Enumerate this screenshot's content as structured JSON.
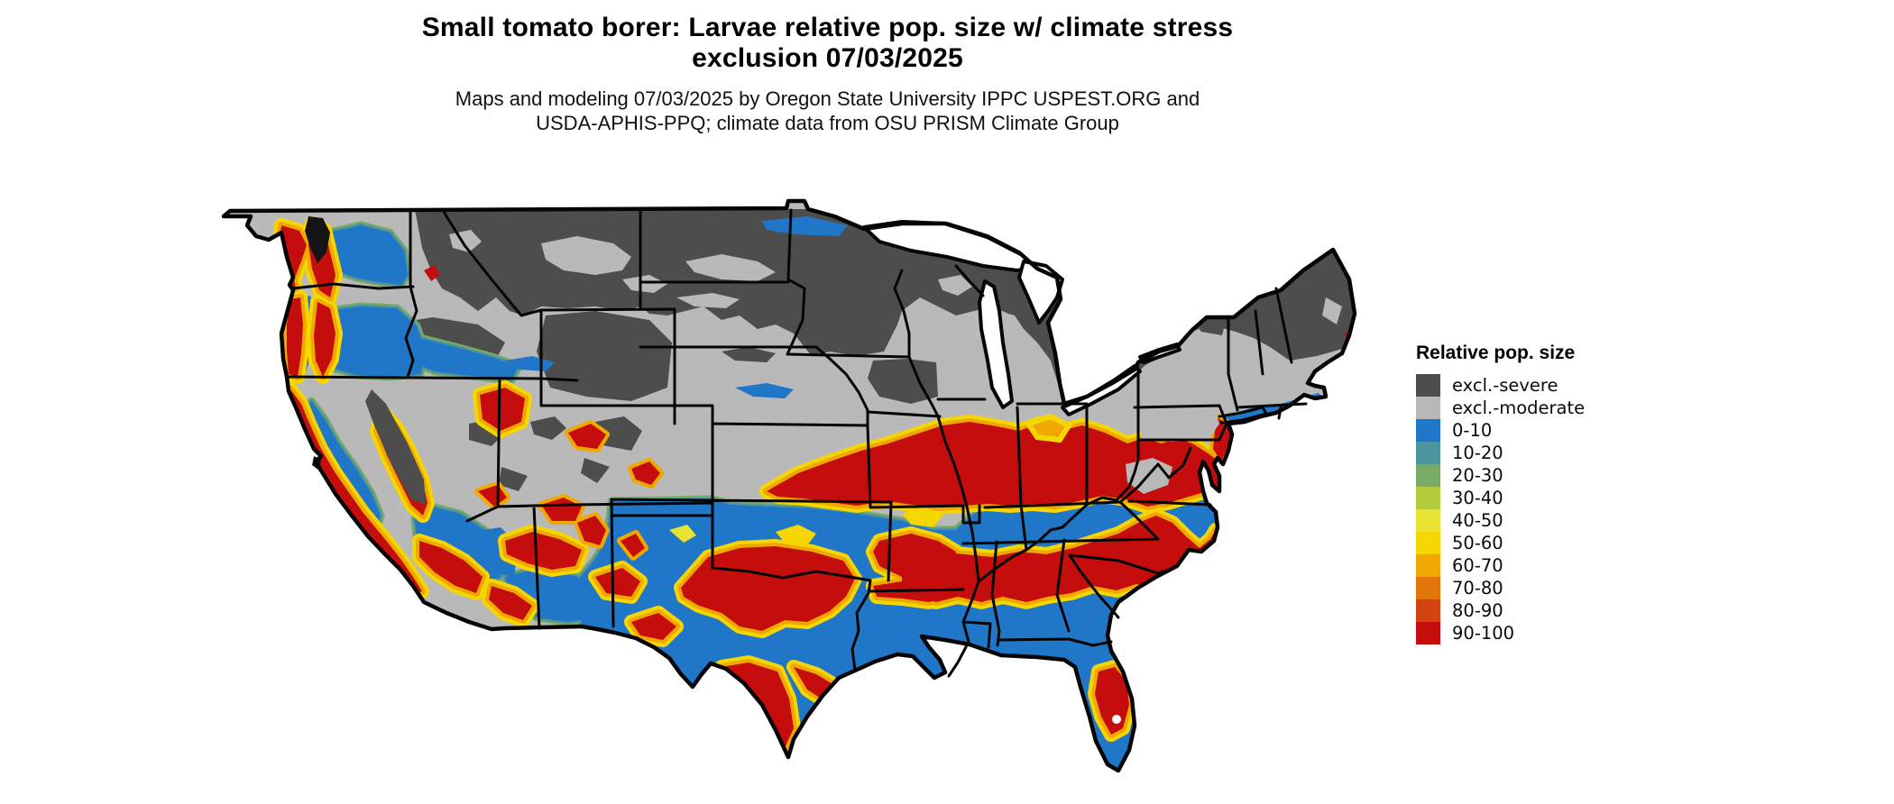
{
  "title": {
    "line1": "Small tomato borer: Larvae relative pop. size w/ climate stress",
    "line2": "exclusion 07/03/2025"
  },
  "subtitle": {
    "line1": "Maps and modeling 07/03/2025 by Oregon State University IPPC USPEST.ORG and",
    "line2": "USDA-APHIS-PPQ; climate data from OSU PRISM Climate Group"
  },
  "legend": {
    "title": "Relative pop. size",
    "items": [
      {
        "label": "excl.-severe",
        "color": "#4d4d4d"
      },
      {
        "label": "excl.-moderate",
        "color": "#b9b9b9"
      },
      {
        "label": "0-10",
        "color": "#2077c7"
      },
      {
        "label": "10-20",
        "color": "#4e93a0"
      },
      {
        "label": "20-30",
        "color": "#79ab66"
      },
      {
        "label": "30-40",
        "color": "#b4cc3c"
      },
      {
        "label": "40-50",
        "color": "#e6e332"
      },
      {
        "label": "50-60",
        "color": "#f6d600"
      },
      {
        "label": "60-70",
        "color": "#efa800"
      },
      {
        "label": "70-80",
        "color": "#e2760b"
      },
      {
        "label": "80-90",
        "color": "#d54111"
      },
      {
        "label": "90-100",
        "color": "#c50d0d"
      }
    ]
  },
  "map": {
    "region": "Conterminous United States",
    "water_color": "#ffffff",
    "boundary_color": "#050505",
    "background_color": "#ffffff"
  }
}
